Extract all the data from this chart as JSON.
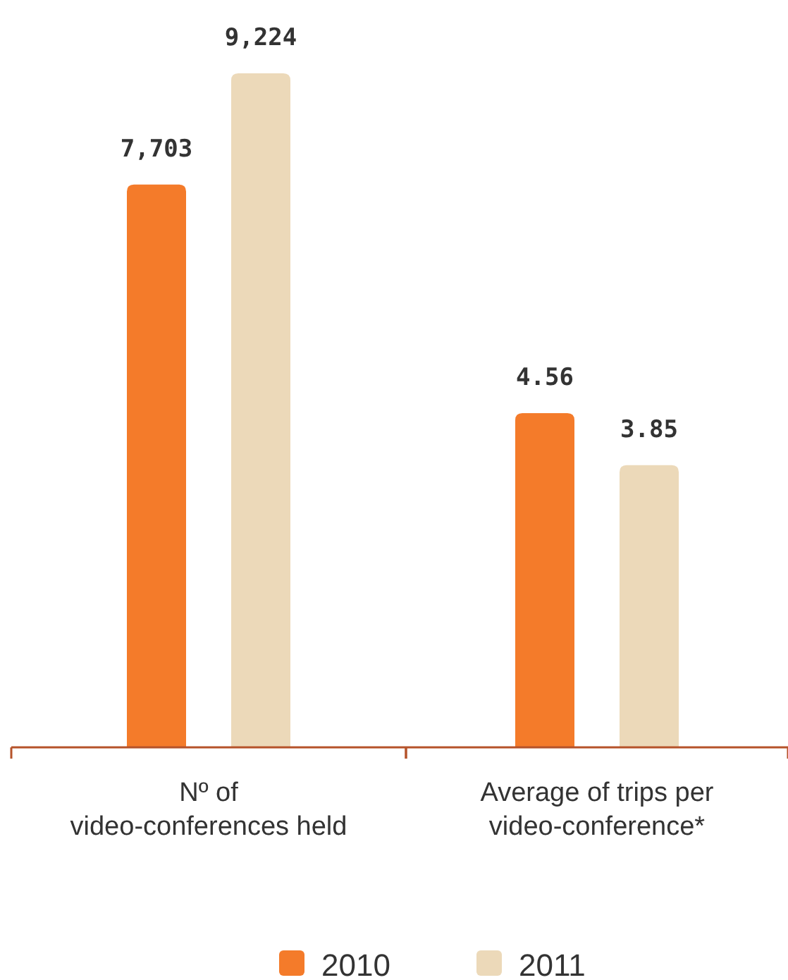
{
  "chart_data": [
    {
      "type": "bar",
      "categories": [
        "Nº of\nvideo-conferences held"
      ],
      "tick_labels": "x",
      "legend": "bottom",
      "series": [
        {
          "name": "2010",
          "color": "#f47b2a",
          "values": [
            7703
          ],
          "value_labels": [
            "7,703"
          ]
        },
        {
          "name": "2011",
          "color": "#ecd9b9",
          "values": [
            9224
          ],
          "value_labels": [
            "9,224"
          ]
        }
      ]
    },
    {
      "type": "bar",
      "categories": [
        "Average of trips per\nvideo-conference*"
      ],
      "tick_labels": "x",
      "data_labels": true,
      "series": [
        {
          "color": "#f47b2a",
          "values": [
            4.56
          ]
        },
        {
          "color": "#ecd9b9",
          "values": [
            3.85
          ]
        }
      ]
    }
  ]
}
